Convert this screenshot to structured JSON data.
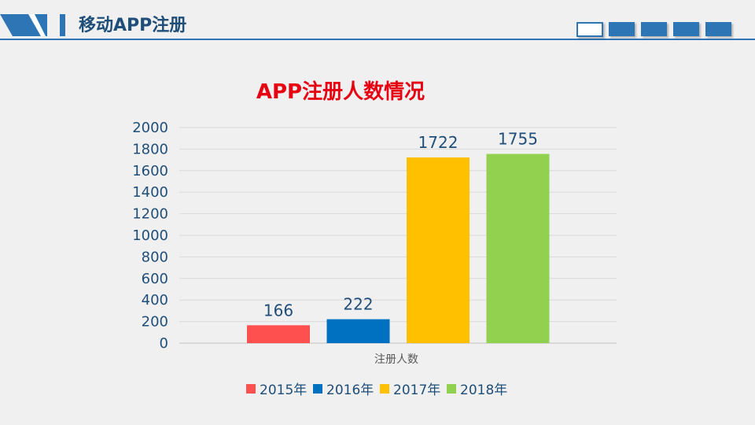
{
  "header": {
    "title": "移动APP注册",
    "accent_color": "#2e75b6"
  },
  "chart_data": {
    "type": "bar",
    "title": "APP注册人数情况",
    "categories": [
      "注册人数"
    ],
    "series": [
      {
        "name": "2015年",
        "values": [
          166
        ],
        "color": "#ff5050"
      },
      {
        "name": "2016年",
        "values": [
          222
        ],
        "color": "#0070c0"
      },
      {
        "name": "2017年",
        "values": [
          1722
        ],
        "color": "#ffc000"
      },
      {
        "name": "2018年",
        "values": [
          1755
        ],
        "color": "#92d050"
      }
    ],
    "yticks": [
      0,
      200,
      400,
      600,
      800,
      1000,
      1200,
      1400,
      1600,
      1800,
      2000
    ],
    "ylim": [
      0,
      2000
    ],
    "xlabel": "",
    "ylabel": "",
    "grid": true,
    "legend": "bottom",
    "title_color": "#e60012"
  }
}
